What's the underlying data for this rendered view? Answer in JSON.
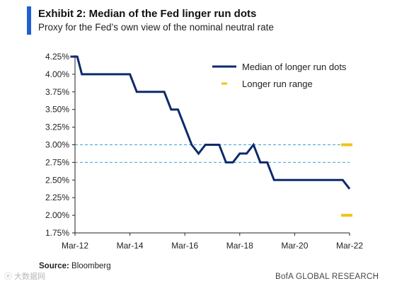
{
  "header": {
    "title": "Exhibit 2: Median of the Fed linger run dots",
    "subtitle": "Proxy for the Fed’s  own view of the nominal neutral rate"
  },
  "footer": {
    "source_label": "Source:",
    "source_text": "Bloomberg",
    "brand": "BofA GLOBAL RESEARCH",
    "watermark": "ⓔ 大数据网"
  },
  "colors": {
    "accent": "#1f5fd1",
    "median_line": "#0d2a6b",
    "range_marks": "#f2c318",
    "dashed_lines": "#3aa0d8",
    "axis": "#222222"
  },
  "chart_data": {
    "type": "line",
    "title": "Exhibit 2: Median of the Fed linger run dots",
    "subtitle": "Proxy for the Fed’s  own view of the nominal neutral rate",
    "xlabel": "",
    "ylabel": "",
    "x_ticks": [
      "Mar-12",
      "Mar-14",
      "Mar-16",
      "Mar-18",
      "Mar-20",
      "Mar-22"
    ],
    "y_ticks": [
      "1.75%",
      "2.00%",
      "2.25%",
      "2.50%",
      "2.75%",
      "3.00%",
      "3.25%",
      "3.50%",
      "3.75%",
      "4.00%",
      "4.25%"
    ],
    "ylim": [
      1.75,
      4.25
    ],
    "xlim": [
      "2012-03",
      "2022-03"
    ],
    "grid": false,
    "legend_position": "top-right",
    "series": [
      {
        "name": "Median of longer run dots",
        "points": [
          [
            "2012-01",
            4.25
          ],
          [
            "2012-04",
            4.25
          ],
          [
            "2012-06",
            4.0
          ],
          [
            "2012-09",
            4.0
          ],
          [
            "2012-12",
            4.0
          ],
          [
            "2013-03",
            4.0
          ],
          [
            "2013-06",
            4.0
          ],
          [
            "2013-09",
            4.0
          ],
          [
            "2013-12",
            4.0
          ],
          [
            "2014-03",
            4.0
          ],
          [
            "2014-06",
            3.75
          ],
          [
            "2014-09",
            3.75
          ],
          [
            "2014-12",
            3.75
          ],
          [
            "2015-03",
            3.75
          ],
          [
            "2015-06",
            3.75
          ],
          [
            "2015-09",
            3.5
          ],
          [
            "2015-12",
            3.5
          ],
          [
            "2016-03",
            3.25
          ],
          [
            "2016-06",
            3.0
          ],
          [
            "2016-09",
            2.875
          ],
          [
            "2016-12",
            3.0
          ],
          [
            "2017-03",
            3.0
          ],
          [
            "2017-06",
            3.0
          ],
          [
            "2017-09",
            2.75
          ],
          [
            "2017-12",
            2.75
          ],
          [
            "2018-03",
            2.875
          ],
          [
            "2018-06",
            2.875
          ],
          [
            "2018-09",
            3.0
          ],
          [
            "2018-12",
            2.75
          ],
          [
            "2019-03",
            2.75
          ],
          [
            "2019-06",
            2.5
          ],
          [
            "2019-09",
            2.5
          ],
          [
            "2019-12",
            2.5
          ],
          [
            "2020-03",
            2.5
          ],
          [
            "2020-06",
            2.5
          ],
          [
            "2020-09",
            2.5
          ],
          [
            "2020-12",
            2.5
          ],
          [
            "2021-03",
            2.5
          ],
          [
            "2021-06",
            2.5
          ],
          [
            "2021-09",
            2.5
          ],
          [
            "2021-12",
            2.5
          ],
          [
            "2022-03",
            2.375
          ]
        ]
      },
      {
        "name": "Longer run range",
        "type": "marker",
        "points": [
          [
            "2022-03",
            3.0
          ],
          [
            "2022-03",
            2.0
          ]
        ]
      }
    ],
    "reference_lines": [
      3.0,
      2.75
    ]
  }
}
